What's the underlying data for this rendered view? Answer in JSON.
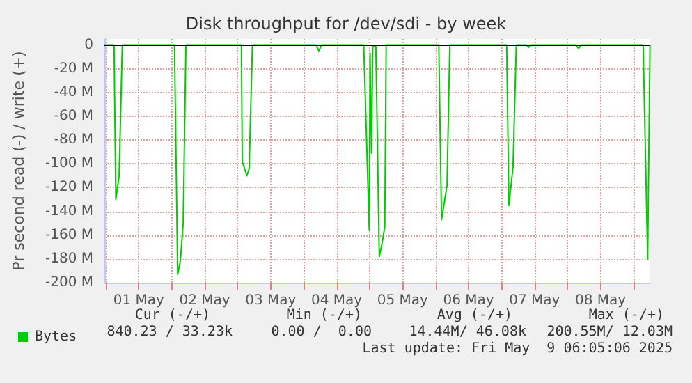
{
  "chart_data": {
    "type": "line",
    "title": "Disk throughput for /dev/sdi - by week",
    "ylabel": "Pr second read (-) / write (+)",
    "xlim": [
      "2025-04-30T23:30",
      "2025-05-09T06:05"
    ],
    "xticks": [
      {
        "value": "2025-05-01T00:00",
        "label": null
      },
      {
        "value": "2025-05-01T12:00",
        "label": "01 May"
      },
      {
        "value": "2025-05-02T00:00",
        "label": null
      },
      {
        "value": "2025-05-02T12:00",
        "label": "02 May"
      },
      {
        "value": "2025-05-03T00:00",
        "label": null
      },
      {
        "value": "2025-05-03T12:00",
        "label": "03 May"
      },
      {
        "value": "2025-05-04T00:00",
        "label": null
      },
      {
        "value": "2025-05-04T12:00",
        "label": "04 May"
      },
      {
        "value": "2025-05-05T00:00",
        "label": null
      },
      {
        "value": "2025-05-05T12:00",
        "label": "05 May"
      },
      {
        "value": "2025-05-06T00:00",
        "label": null
      },
      {
        "value": "2025-05-06T12:00",
        "label": "06 May"
      },
      {
        "value": "2025-05-07T00:00",
        "label": null
      },
      {
        "value": "2025-05-07T12:00",
        "label": "07 May"
      },
      {
        "value": "2025-05-08T00:00",
        "label": null
      },
      {
        "value": "2025-05-08T12:00",
        "label": "08 May"
      },
      {
        "value": "2025-05-09T00:00",
        "label": null
      }
    ],
    "ylim": [
      -200,
      5
    ],
    "yticks": [
      {
        "value": -200,
        "label": "-200 M"
      },
      {
        "value": -180,
        "label": "-180 M"
      },
      {
        "value": -160,
        "label": "-160 M"
      },
      {
        "value": -140,
        "label": "-140 M"
      },
      {
        "value": -120,
        "label": "-120 M"
      },
      {
        "value": -100,
        "label": "-100 M"
      },
      {
        "value": -80,
        "label": "-80 M"
      },
      {
        "value": -60,
        "label": "-60 M"
      },
      {
        "value": -40,
        "label": "-40 M"
      },
      {
        "value": -20,
        "label": "-20 M"
      },
      0
    ],
    "grid": true,
    "legend": "bottom",
    "ref_lines": [
      {
        "axis": "y",
        "value": 0,
        "color": "#000000"
      }
    ],
    "marker": "none",
    "series": [
      {
        "name": "Bytes",
        "color": "#00cc00",
        "x": [
          "2025-04-30T23:30",
          "2025-05-01T03:00",
          "2025-05-01T03:39",
          "2025-05-01T04:51",
          "2025-05-01T06:00",
          "2025-05-02T01:00",
          "2025-05-02T02:09",
          "2025-05-02T03:09",
          "2025-05-02T04:09",
          "2025-05-02T05:09",
          "2025-05-03T01:21",
          "2025-05-03T01:39",
          "2025-05-03T03:21",
          "2025-05-03T04:09",
          "2025-05-03T05:21",
          "2025-05-04T04:30",
          "2025-05-04T05:30",
          "2025-05-04T06:30",
          "2025-05-04T21:51",
          "2025-05-04T23:51",
          "2025-05-05T00:09",
          "2025-05-05T00:39",
          "2025-05-05T01:09",
          "2025-05-05T02:15",
          "2025-05-05T03:30",
          "2025-05-05T04:30",
          "2025-05-05T05:30",
          "2025-05-05T06:00",
          "2025-05-06T01:09",
          "2025-05-06T02:09",
          "2025-05-06T04:09",
          "2025-05-06T05:09",
          "2025-05-07T01:51",
          "2025-05-07T02:39",
          "2025-05-07T04:09",
          "2025-05-07T05:21",
          "2025-05-07T09:00",
          "2025-05-07T09:51",
          "2025-05-07T10:45",
          "2025-05-08T03:00",
          "2025-05-08T04:00",
          "2025-05-08T05:00",
          "2025-05-09T03:30",
          "2025-05-09T05:09",
          "2025-05-09T06:00"
        ],
        "values": [
          0,
          0,
          -130,
          -110,
          0,
          0,
          -193,
          -181,
          -150,
          0,
          0,
          -98,
          -110,
          -104,
          0,
          0,
          -5,
          0,
          0,
          -156,
          -7,
          -91,
          -1,
          -1,
          -178,
          -167,
          -153,
          0,
          0,
          -147,
          -118,
          0,
          0,
          -135,
          -103,
          0,
          0,
          -2,
          0,
          0,
          -3,
          0,
          0,
          -180,
          0
        ]
      }
    ],
    "annotations": [
      "Cur (-/+)",
      "Min (-/+)",
      "Avg (-/+)",
      "Max (-/+)",
      "840.23 / 33.23k",
      "0.00 /  0.00",
      "14.44M/ 46.08k",
      "200.55M/ 12.03M",
      "Last update: Fri May  9 06:05:06 2025"
    ]
  }
}
